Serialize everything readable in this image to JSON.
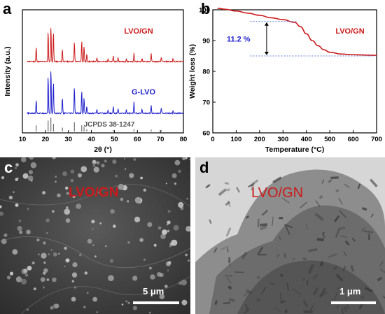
{
  "panels": {
    "a": {
      "letter": "a"
    },
    "b": {
      "letter": "b"
    },
    "c": {
      "letter": "c",
      "label": "LVO/GN",
      "scale": "5 μm"
    },
    "d": {
      "letter": "d",
      "label": "LVO/GN",
      "scale": "1 μm"
    }
  },
  "chart_data": [
    {
      "type": "line",
      "panel": "a",
      "xlabel": "2θ (°)",
      "ylabel": "Intensity (a.u.)",
      "xlim": [
        10,
        80
      ],
      "xticks": [
        10,
        20,
        30,
        40,
        50,
        60,
        70,
        80
      ],
      "series": [
        {
          "name": "LVO/GN",
          "color": "#cc1a1a",
          "peaks": [
            [
              16.0,
              0.38
            ],
            [
              21.2,
              0.8
            ],
            [
              22.4,
              0.95
            ],
            [
              23.5,
              0.78
            ],
            [
              27.4,
              0.33
            ],
            [
              32.6,
              0.52
            ],
            [
              35.8,
              0.55
            ],
            [
              36.8,
              0.42
            ],
            [
              38.0,
              0.2
            ],
            [
              42.4,
              0.1
            ],
            [
              47.2,
              0.08
            ],
            [
              49.5,
              0.15
            ],
            [
              51.6,
              0.1
            ],
            [
              55.2,
              0.08
            ],
            [
              58.5,
              0.22
            ],
            [
              62.0,
              0.08
            ],
            [
              66.0,
              0.2
            ],
            [
              70.4,
              0.12
            ],
            [
              75.5,
              0.08
            ]
          ]
        },
        {
          "name": "G-LVO",
          "color": "#1f1fcc",
          "peaks": [
            [
              16.0,
              0.3
            ],
            [
              21.2,
              0.85
            ],
            [
              22.4,
              1.0
            ],
            [
              23.5,
              0.7
            ],
            [
              27.4,
              0.35
            ],
            [
              32.6,
              0.6
            ],
            [
              35.8,
              0.5
            ],
            [
              36.8,
              0.35
            ],
            [
              38.0,
              0.15
            ],
            [
              42.4,
              0.08
            ],
            [
              47.2,
              0.08
            ],
            [
              49.5,
              0.15
            ],
            [
              51.6,
              0.1
            ],
            [
              55.2,
              0.08
            ],
            [
              58.5,
              0.25
            ],
            [
              62.0,
              0.08
            ],
            [
              66.0,
              0.18
            ],
            [
              70.4,
              0.12
            ],
            [
              75.5,
              0.06
            ]
          ]
        },
        {
          "name": "JCPDS 38-1247",
          "color": "#555555",
          "peaks": [
            [
              16.0,
              0.4
            ],
            [
              21.2,
              0.7
            ],
            [
              22.4,
              0.9
            ],
            [
              23.5,
              0.5
            ],
            [
              27.4,
              0.25
            ],
            [
              32.6,
              0.6
            ],
            [
              35.8,
              0.4
            ],
            [
              36.8,
              0.3
            ],
            [
              38.0,
              0.15
            ],
            [
              49.5,
              0.1
            ],
            [
              58.5,
              0.15
            ],
            [
              66.0,
              0.12
            ],
            [
              70.4,
              0.08
            ]
          ]
        }
      ]
    },
    {
      "type": "line",
      "panel": "b",
      "xlabel": "Temperature (°C)",
      "ylabel": "Weight loss (%)",
      "xlim": [
        0,
        700
      ],
      "ylim": [
        60,
        100
      ],
      "xticks": [
        0,
        100,
        200,
        300,
        400,
        500,
        600,
        700
      ],
      "yticks": [
        60,
        70,
        80,
        90,
        100
      ],
      "series": [
        {
          "name": "LVO/GN",
          "color": "#cc1a1a",
          "x": [
            20,
            50,
            100,
            150,
            200,
            250,
            300,
            350,
            375,
            400,
            425,
            450,
            475,
            500,
            550,
            600,
            650,
            700
          ],
          "y": [
            100.5,
            100.2,
            99.6,
            98.9,
            98.2,
            97.4,
            96.8,
            95.9,
            94.5,
            92.2,
            90.0,
            88.3,
            87.0,
            86.2,
            85.6,
            85.4,
            85.3,
            85.2
          ]
        }
      ],
      "annotation": {
        "text": "11.2 %",
        "color": "#1f1fcc",
        "y_upper": 96.2,
        "y_lower": 85.0
      }
    }
  ]
}
